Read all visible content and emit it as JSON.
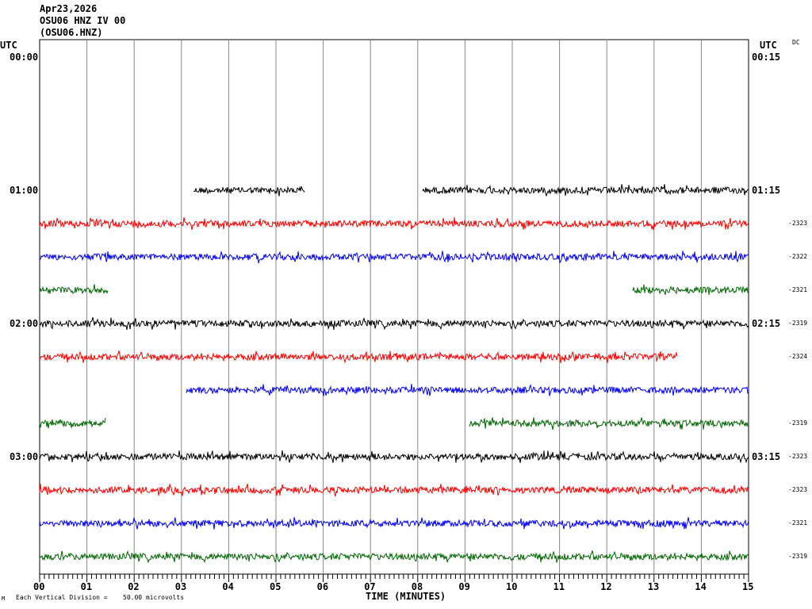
{
  "header": {
    "date": "Apr23,2026",
    "station": "OSU06 HNZ IV 00",
    "code": "(OSU06.HNZ)"
  },
  "left_axis": {
    "title": "UTC",
    "labels": [
      "00:00",
      "01:00",
      "02:00",
      "03:00"
    ]
  },
  "right_axis": {
    "title": "UTC",
    "labels": [
      "00:15",
      "01:15",
      "02:15",
      "03:15"
    ],
    "dc": "DC"
  },
  "footer": {
    "xlabel": "TIME (MINUTES)",
    "scale_note": "Each Vertical Division =",
    "scale_value": "50.00 microvolts",
    "mark": "M"
  },
  "chart_data": {
    "type": "line",
    "title": "OSU06 HNZ IV 00 helicorder",
    "xlabel": "TIME (MINUTES)",
    "xlim": [
      0,
      15
    ],
    "x_ticks": [
      "00",
      "01",
      "02",
      "03",
      "04",
      "05",
      "06",
      "07",
      "08",
      "09",
      "10",
      "11",
      "12",
      "13",
      "14",
      "15"
    ],
    "rows_per_hour": 4,
    "colors": [
      "#000000",
      "#ff0000",
      "#0000ff",
      "#006600"
    ],
    "rows": [
      {
        "start": "00:00",
        "segments": [],
        "dc": ""
      },
      {
        "start": "00:15",
        "segments": [],
        "dc": ""
      },
      {
        "start": "00:30",
        "segments": [],
        "dc": ""
      },
      {
        "start": "00:45",
        "segments": [],
        "dc": ""
      },
      {
        "start": "01:00",
        "segments": [
          [
            3.25,
            5.6
          ],
          [
            8.1,
            15
          ]
        ],
        "dc": ""
      },
      {
        "start": "01:15",
        "segments": [
          [
            0,
            15
          ]
        ],
        "dc": "-2323"
      },
      {
        "start": "01:30",
        "segments": [
          [
            0,
            15
          ]
        ],
        "dc": "-2322"
      },
      {
        "start": "01:45",
        "segments": [
          [
            0,
            1.45
          ],
          [
            12.55,
            15
          ]
        ],
        "dc": "-2321"
      },
      {
        "start": "02:00",
        "segments": [
          [
            0,
            15
          ]
        ],
        "dc": "-2319"
      },
      {
        "start": "02:15",
        "segments": [
          [
            0,
            13.5
          ]
        ],
        "dc": "-2324"
      },
      {
        "start": "02:30",
        "segments": [
          [
            3.1,
            15
          ]
        ],
        "dc": ""
      },
      {
        "start": "02:45",
        "segments": [
          [
            0,
            1.4
          ],
          [
            9.1,
            15
          ]
        ],
        "dc": "-2319"
      },
      {
        "start": "03:00",
        "segments": [
          [
            0,
            15
          ]
        ],
        "dc": "-2323"
      },
      {
        "start": "03:15",
        "segments": [
          [
            0,
            15
          ]
        ],
        "dc": "-2323"
      },
      {
        "start": "03:30",
        "segments": [
          [
            0,
            15
          ]
        ],
        "dc": "-2321"
      },
      {
        "start": "03:45",
        "segments": [
          [
            0,
            15
          ]
        ],
        "dc": "-2319"
      }
    ]
  }
}
